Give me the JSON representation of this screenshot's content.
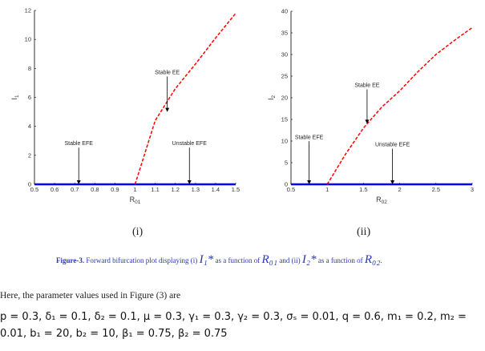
{
  "chart_data": [
    {
      "type": "line",
      "xlabel": "R01",
      "ylabel": "I1",
      "xlim": [
        0.5,
        1.5
      ],
      "ylim": [
        0,
        12
      ],
      "xticks": [
        "0.5",
        "0.6",
        "0.7",
        "0.8",
        "0.9",
        "1",
        "1.1",
        "1.2",
        "1.3",
        "1.4",
        "1.5"
      ],
      "yticks": [
        "0",
        "2",
        "4",
        "6",
        "8",
        "10",
        "12"
      ],
      "series": [
        {
          "style": "solid",
          "color": "#0000ff",
          "x": [
            0.5,
            1.5
          ],
          "y": [
            0,
            0
          ]
        },
        {
          "style": "dashed",
          "color": "#ff0000",
          "x": [
            1,
            1.1,
            1.2,
            1.3,
            1.4,
            1.5
          ],
          "y": [
            0,
            4.4,
            6.6,
            8.3,
            10.1,
            11.8
          ]
        }
      ],
      "annotations": [
        {
          "text": "Stable EFE",
          "x": 0.72,
          "y_text": 2.7,
          "y_arrow": 0
        },
        {
          "text": "Stable EE",
          "x": 1.16,
          "y_text": 7.6,
          "y_arrow": 5.0
        },
        {
          "text": "Unstable EFE",
          "x": 1.27,
          "y_text": 2.7,
          "y_arrow": 0
        }
      ],
      "panel_label": "(i)"
    },
    {
      "type": "line",
      "xlabel": "R02",
      "ylabel": "I2",
      "xlim": [
        0.5,
        3
      ],
      "ylim": [
        0,
        40
      ],
      "xticks": [
        "0.5",
        "1",
        "1.5",
        "2",
        "2.5",
        "3"
      ],
      "yticks": [
        "0",
        "5",
        "10",
        "15",
        "20",
        "25",
        "30",
        "35",
        "40"
      ],
      "series": [
        {
          "style": "solid",
          "color": "#0000ff",
          "x": [
            0.5,
            3
          ],
          "y": [
            0,
            0
          ]
        },
        {
          "style": "dashed",
          "color": "#ff0000",
          "x": [
            1,
            1.25,
            1.5,
            1.75,
            2,
            2.25,
            2.5,
            2.75,
            3
          ],
          "y": [
            0,
            6.9,
            13,
            17.8,
            21.6,
            26,
            30,
            33.2,
            36.2
          ]
        }
      ],
      "annotations": [
        {
          "text": "Stable EFE",
          "x": 0.75,
          "y_text": 10.5,
          "y_arrow": 0
        },
        {
          "text": "Stable EE",
          "x": 1.55,
          "y_text": 22.5,
          "y_arrow": 14
        },
        {
          "text": "Unstable EFE",
          "x": 1.9,
          "y_text": 8.8,
          "y_arrow": 0
        }
      ],
      "panel_label": "(ii)"
    }
  ],
  "caption": {
    "label": "Figure-3.",
    "t1": "Forward bifurcation plot displaying (i)",
    "v1": "I₁*",
    "t2": "as a function of",
    "r1": "R₀₁",
    "t3": "and (ii)",
    "v2": "I₂*",
    "t4": "as a function of",
    "r2": "R₀₂",
    "end": "."
  },
  "intro": "Here, the parameter values used in Figure (3) are",
  "params_line1": "p = 0.3, δ₁ = 0.1, δ₂ = 0.1, μ = 0.3, γ₁ = 0.3, γ₂ = 0.3, σₛ = 0.01, q = 0.6, m₁ = 0.2, m₂ =",
  "params_line2": "0.01, b₁ = 20, b₂ = 10, β₁ = 0.75, β₂ = 0.75"
}
